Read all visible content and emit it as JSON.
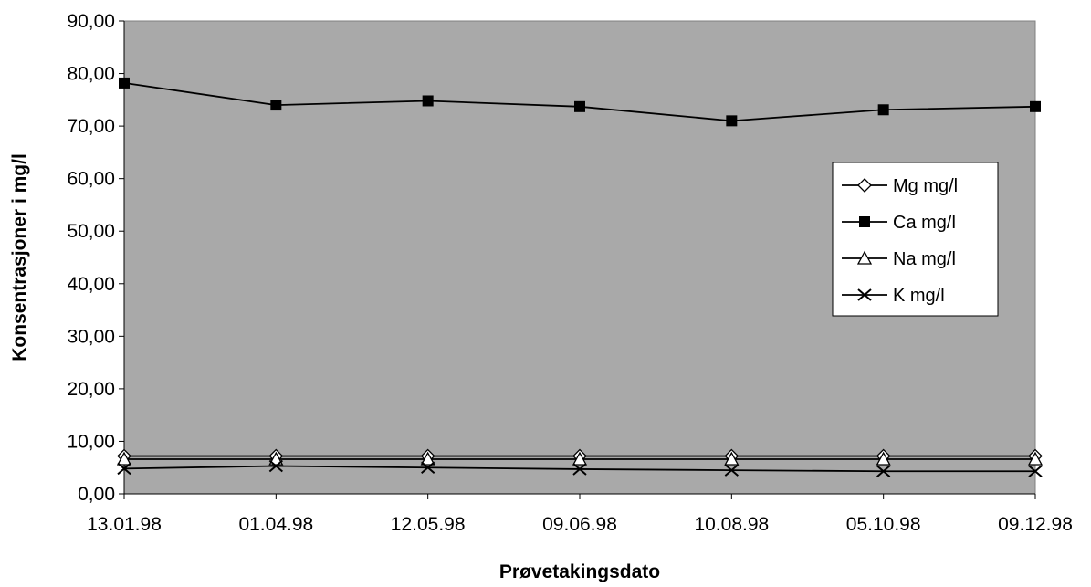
{
  "chart_data": {
    "type": "line",
    "xlabel": "Prøvetakingsdato",
    "ylabel": "Konsentrasjoner i mg/l",
    "categories": [
      "13.01.98",
      "01.04.98",
      "12.05.98",
      "09.06.98",
      "10.08.98",
      "05.10.98",
      "09.12.98"
    ],
    "ylim": [
      0,
      90
    ],
    "yticks": [
      "0,00",
      "10,00",
      "20,00",
      "30,00",
      "40,00",
      "50,00",
      "60,00",
      "70,00",
      "80,00",
      "90,00"
    ],
    "grid": false,
    "legend_position": "right",
    "series": [
      {
        "name": "Mg mg/l",
        "marker": "diamond",
        "values": [
          7.2,
          7.2,
          7.2,
          7.2,
          7.2,
          7.2,
          7.2
        ]
      },
      {
        "name": "Ca mg/l",
        "marker": "square",
        "values": [
          78.2,
          74.0,
          74.8,
          73.7,
          71.0,
          73.1,
          73.7
        ]
      },
      {
        "name": "Na mg/l",
        "marker": "triangle",
        "values": [
          6.6,
          6.6,
          6.6,
          6.6,
          6.6,
          6.6,
          6.6
        ]
      },
      {
        "name": "K mg/l",
        "marker": "x",
        "values": [
          4.8,
          5.3,
          5.0,
          4.7,
          4.5,
          4.3,
          4.3
        ]
      }
    ],
    "colors": {
      "plot_background": "#a9a9a9",
      "line": "#000000",
      "legend_background": "#ffffff"
    }
  }
}
